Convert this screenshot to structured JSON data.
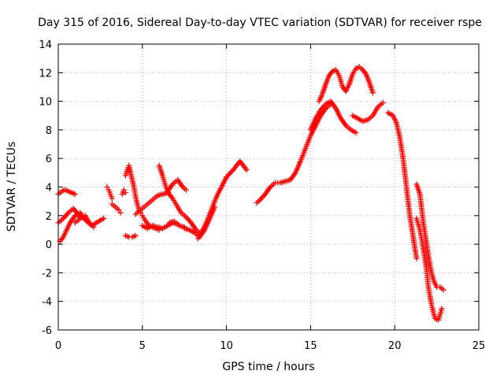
{
  "chart_data": {
    "type": "scatter",
    "title": "Day 315 of 2016, Sidereal Day-to-day VTEC variation (SDTVAR) for receiver rspe",
    "xlabel": "GPS time / hours",
    "ylabel": "SDTVAR / TECUs",
    "xlim": [
      0,
      25
    ],
    "ylim": [
      -6,
      14
    ],
    "xticks": [
      "0",
      "5",
      "10",
      "15",
      "20",
      "25"
    ],
    "yticks": [
      "-6",
      "-4",
      "-2",
      "0",
      "2",
      "4",
      "6",
      "8",
      "10",
      "12",
      "14"
    ],
    "grid": true,
    "marker": "+",
    "color": "#ff0000",
    "series": [
      {
        "x": [
          0.0,
          0.2,
          0.4,
          0.6,
          0.8,
          1.0
        ],
        "y": [
          3.5,
          3.7,
          3.8,
          3.7,
          3.6,
          3.5
        ]
      },
      {
        "x": [
          0.0,
          0.3,
          0.6,
          0.9,
          1.1,
          1.3
        ],
        "y": [
          1.5,
          1.8,
          2.2,
          2.5,
          2.2,
          1.9
        ]
      },
      {
        "x": [
          0.1,
          0.3,
          0.5,
          0.7,
          1.0,
          1.3,
          1.6,
          2.0,
          2.4,
          2.7
        ],
        "y": [
          0.2,
          0.5,
          1.0,
          1.5,
          2.0,
          2.2,
          1.7,
          1.3,
          1.6,
          1.8
        ]
      },
      {
        "x": [
          1.0,
          1.3,
          1.6,
          1.9,
          2.1
        ],
        "y": [
          1.5,
          1.8,
          2.0,
          1.4,
          1.2
        ]
      },
      {
        "x": [
          2.9,
          3.0,
          3.1,
          3.2
        ],
        "y": [
          4.0,
          3.8,
          3.5,
          3.2
        ]
      },
      {
        "x": [
          3.2,
          3.4,
          3.6,
          3.7
        ],
        "y": [
          2.8,
          2.6,
          2.4,
          2.2
        ]
      },
      {
        "x": [
          3.8,
          3.9,
          4.0
        ],
        "y": [
          3.5,
          3.8,
          3.6
        ]
      },
      {
        "x": [
          4.0,
          4.1,
          4.2,
          4.3,
          4.4,
          4.5,
          4.6,
          4.7,
          4.8,
          4.9,
          5.0,
          5.2,
          5.4,
          5.6,
          5.8,
          6.0
        ],
        "y": [
          4.8,
          5.2,
          5.5,
          5.0,
          4.5,
          4.0,
          3.3,
          2.8,
          2.4,
          2.2,
          2.0,
          1.6,
          1.3,
          1.2,
          1.1,
          1.0
        ]
      },
      {
        "x": [
          4.0,
          4.2,
          4.4,
          4.6
        ],
        "y": [
          0.6,
          0.5,
          0.5,
          0.6
        ]
      },
      {
        "x": [
          4.6,
          4.8,
          5.0,
          5.3,
          5.6,
          5.9,
          6.2,
          6.5
        ],
        "y": [
          2.1,
          2.3,
          2.5,
          2.8,
          3.1,
          3.4,
          3.5,
          3.6
        ]
      },
      {
        "x": [
          5.0,
          5.3,
          5.6,
          5.9,
          6.2,
          6.5,
          6.8,
          7.1
        ],
        "y": [
          1.3,
          1.1,
          1.3,
          1.2,
          1.1,
          1.3,
          1.5,
          1.4
        ]
      },
      {
        "x": [
          6.0,
          6.2,
          6.4,
          6.6,
          6.8,
          7.0,
          7.3,
          7.6,
          7.9,
          8.2,
          8.4
        ],
        "y": [
          5.5,
          4.8,
          4.0,
          3.5,
          3.2,
          2.8,
          2.2,
          1.9,
          1.5,
          1.0,
          0.8
        ]
      },
      {
        "x": [
          6.5,
          6.8,
          7.1,
          7.4,
          7.6
        ],
        "y": [
          3.7,
          4.2,
          4.5,
          4.0,
          3.8
        ]
      },
      {
        "x": [
          6.6,
          6.9,
          7.2,
          7.5
        ],
        "y": [
          1.5,
          1.6,
          1.3,
          1.2
        ]
      },
      {
        "x": [
          7.5,
          7.8,
          8.1,
          8.4,
          8.7,
          9.0,
          9.3
        ],
        "y": [
          1.1,
          1.0,
          0.8,
          0.5,
          1.0,
          1.8,
          2.6
        ]
      },
      {
        "x": [
          8.3,
          8.5,
          8.8,
          9.1,
          9.4,
          9.7,
          10.0,
          10.4,
          10.8,
          11.2
        ],
        "y": [
          0.4,
          0.8,
          1.5,
          2.4,
          3.3,
          4.0,
          4.7,
          5.2,
          5.8,
          5.2
        ]
      },
      {
        "x": [
          11.8,
          12.0,
          12.3,
          12.6,
          12.9,
          13.2,
          13.5,
          13.8,
          14.1,
          14.4,
          14.7,
          15.0,
          15.3,
          15.6,
          15.9,
          16.2
        ],
        "y": [
          2.9,
          3.1,
          3.5,
          4.0,
          4.3,
          4.3,
          4.4,
          4.5,
          5.0,
          5.8,
          6.7,
          7.6,
          8.3,
          9.0,
          9.5,
          9.8
        ]
      },
      {
        "x": [
          15.0,
          15.3,
          15.6,
          15.9,
          16.2,
          16.5,
          16.8,
          17.1,
          17.4,
          17.7
        ],
        "y": [
          8.0,
          8.8,
          9.4,
          9.8,
          10.0,
          9.5,
          8.8,
          8.3,
          8.0,
          7.8
        ]
      },
      {
        "x": [
          15.5,
          15.7,
          15.9,
          16.1,
          16.3,
          16.5,
          16.7,
          16.9,
          17.1,
          17.3,
          17.5,
          17.7,
          17.9,
          18.1,
          18.3,
          18.5,
          18.7
        ],
        "y": [
          10.0,
          10.5,
          11.2,
          11.8,
          12.1,
          12.2,
          11.8,
          11.0,
          10.7,
          11.2,
          11.9,
          12.3,
          12.4,
          12.2,
          11.9,
          11.3,
          10.6
        ]
      },
      {
        "x": [
          17.5,
          17.8,
          18.1,
          18.4,
          18.7,
          19.0,
          19.3
        ],
        "y": [
          9.0,
          8.8,
          8.6,
          8.7,
          9.0,
          9.6,
          9.9
        ]
      },
      {
        "x": [
          19.6,
          19.9,
          20.1,
          20.3,
          20.5,
          20.7,
          20.9,
          21.1,
          21.3
        ],
        "y": [
          9.2,
          9.0,
          8.5,
          7.5,
          6.0,
          4.0,
          2.0,
          0.5,
          -1.0
        ]
      },
      {
        "x": [
          21.3,
          21.5,
          21.7,
          21.9,
          22.1,
          22.3,
          22.5,
          22.7,
          22.9
        ],
        "y": [
          4.2,
          3.5,
          1.5,
          0.0,
          -1.5,
          -2.5,
          -3.0,
          -3.0,
          -3.2
        ]
      },
      {
        "x": [
          21.3,
          21.5,
          21.7,
          21.9,
          22.0,
          22.2,
          22.4,
          22.6,
          22.8
        ],
        "y": [
          1.8,
          1.0,
          -0.3,
          -1.8,
          -3.0,
          -4.3,
          -5.2,
          -5.3,
          -4.5
        ]
      }
    ]
  }
}
